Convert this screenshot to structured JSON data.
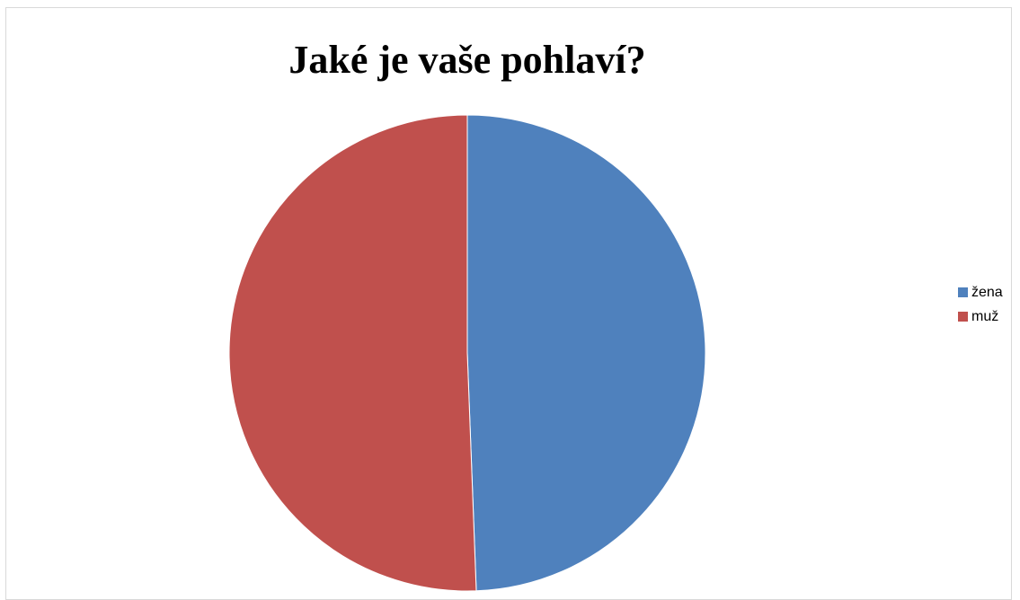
{
  "chart_data": {
    "type": "pie",
    "title": "Jaké je vaše pohlaví?",
    "categories": [
      "žena",
      "muž"
    ],
    "values": [
      49.4,
      50.6
    ],
    "colors": [
      "#4F81BD",
      "#C0504D"
    ],
    "legend_position": "right"
  }
}
